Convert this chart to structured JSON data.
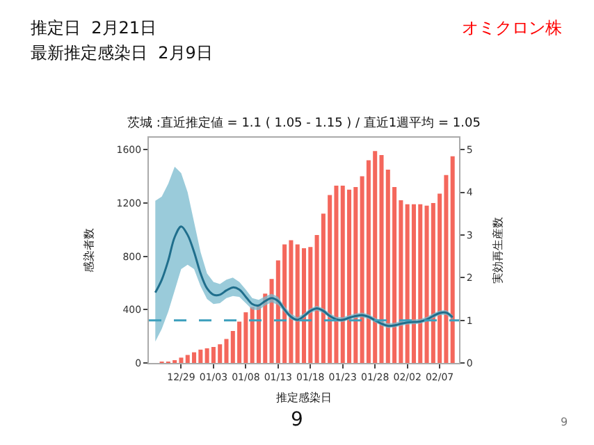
{
  "chart_data": {
    "type": "bar",
    "title": "茨城 :直近推定値 = 1.1 ( 1.05 - 1.15 ) / 直近1週平均 = 1.05",
    "xlabel": "推定感染日",
    "ylabel": "感染者数",
    "y2label": "実効再生産数",
    "annotations": [
      "推定日  2月21日",
      "最新推定感染日  2月9日",
      "オミクロン株",
      "9",
      "9"
    ],
    "categories": [
      null,
      null,
      null,
      null,
      "12/29",
      null,
      null,
      null,
      null,
      "01/03",
      null,
      null,
      null,
      null,
      "01/08",
      null,
      null,
      null,
      null,
      "01/13",
      null,
      null,
      null,
      null,
      "01/18",
      null,
      null,
      null,
      null,
      "01/23",
      null,
      null,
      null,
      null,
      "01/28",
      null,
      null,
      null,
      null,
      "02/02",
      null,
      null,
      null,
      null,
      "02/07",
      null,
      null
    ],
    "series": [
      {
        "color": "#f4675c",
        "values": [
          0,
          10,
          10,
          20,
          40,
          60,
          80,
          100,
          110,
          120,
          140,
          180,
          240,
          310,
          380,
          420,
          440,
          520,
          630,
          770,
          890,
          920,
          890,
          860,
          870,
          960,
          1120,
          1260,
          1330,
          1330,
          1300,
          1320,
          1400,
          1520,
          1590,
          1560,
          1450,
          1320,
          1220,
          1190,
          1190,
          1190,
          1180,
          1200,
          1270,
          1410,
          1550
        ]
      },
      {
        "type": "line",
        "axis": "y2",
        "color": "#1f6e8c",
        "values": [
          1.65,
          1.95,
          2.4,
          2.95,
          3.2,
          3.0,
          2.6,
          2.1,
          1.75,
          1.6,
          1.6,
          1.7,
          1.77,
          1.72,
          1.55,
          1.38,
          1.35,
          1.45,
          1.52,
          1.45,
          1.25,
          1.08,
          1.01,
          1.1,
          1.22,
          1.28,
          1.22,
          1.1,
          1.02,
          1.01,
          1.06,
          1.1,
          1.12,
          1.08,
          1.0,
          0.92,
          0.87,
          0.88,
          0.92,
          0.95,
          0.96,
          0.97,
          1.02,
          1.1,
          1.17,
          1.18,
          1.07
        ],
        "upper": [
          3.8,
          3.9,
          4.2,
          4.6,
          4.45,
          4.0,
          3.3,
          2.6,
          2.1,
          1.9,
          1.85,
          1.95,
          2.0,
          1.9,
          1.72,
          1.52,
          1.48,
          1.56,
          1.62,
          1.55,
          1.33,
          1.15,
          1.07,
          1.16,
          1.28,
          1.34,
          1.28,
          1.16,
          1.08,
          1.07,
          1.12,
          1.16,
          1.18,
          1.14,
          1.06,
          0.98,
          0.93,
          0.94,
          0.98,
          1.01,
          1.02,
          1.03,
          1.08,
          1.16,
          1.23,
          1.24,
          1.13
        ],
        "lower": [
          0.5,
          0.8,
          1.2,
          1.7,
          2.2,
          2.3,
          2.2,
          1.8,
          1.5,
          1.38,
          1.4,
          1.52,
          1.57,
          1.55,
          1.4,
          1.25,
          1.24,
          1.35,
          1.42,
          1.36,
          1.18,
          1.02,
          0.96,
          1.05,
          1.17,
          1.23,
          1.17,
          1.05,
          0.97,
          0.96,
          1.01,
          1.05,
          1.07,
          1.03,
          0.95,
          0.87,
          0.82,
          0.83,
          0.87,
          0.9,
          0.91,
          0.92,
          0.97,
          1.05,
          1.12,
          1.13,
          1.02
        ]
      }
    ],
    "ylim": [
      0,
      1690
    ],
    "yticks": [
      0,
      400,
      800,
      1200,
      1600
    ],
    "y2lim": [
      0,
      5.28
    ],
    "y2ticks": [
      0,
      1,
      2,
      3,
      4,
      5
    ],
    "ref_lines": [
      {
        "axis": "y2",
        "value": 1,
        "color": "#3c9fbd",
        "line_style": "dashed"
      }
    ]
  }
}
